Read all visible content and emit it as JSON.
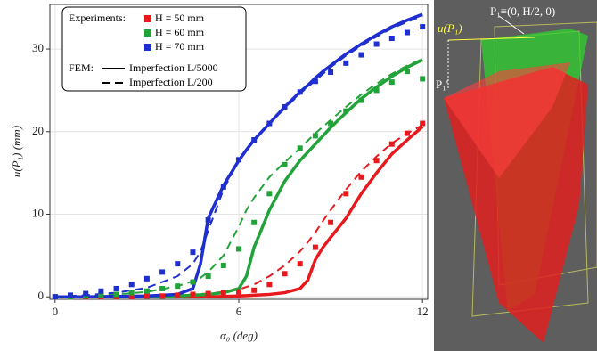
{
  "chart_data": {
    "type": "scatter-line",
    "x_label": "α₀ (deg)",
    "y_label": "u(P₁) (mm)",
    "xlim": [
      -0.17,
      12.17
    ],
    "ylim": [
      -0.3,
      35.4
    ],
    "xticks": [
      0,
      6,
      12
    ],
    "yticks": [
      0,
      10,
      20,
      30
    ],
    "grid": true,
    "experiments_label": "Experiments:",
    "fem_label": "FEM:",
    "experiments_x": [
      0,
      0.5,
      1,
      1.5,
      2,
      2.5,
      3,
      3.5,
      4,
      4.5,
      5,
      5.5,
      6,
      6.5,
      7,
      7.5,
      8,
      8.5,
      9,
      9.5,
      10,
      10.5,
      11,
      11.5,
      12
    ],
    "experiments": [
      {
        "name": "H = 50 mm",
        "color": "#e8191c",
        "values": [
          0,
          0,
          0,
          0,
          0,
          0,
          0.1,
          0.1,
          0.2,
          0.3,
          0.4,
          0.5,
          0.6,
          0.8,
          1.5,
          2.8,
          4,
          6,
          9,
          12.5,
          14.5,
          16.5,
          18.5,
          19.8,
          21
        ]
      },
      {
        "name": "H = 60 mm",
        "color": "#22a33a",
        "values": [
          0,
          0,
          0.1,
          0.2,
          0.3,
          0.5,
          0.7,
          1,
          1.3,
          1.8,
          2.5,
          3.8,
          5.8,
          9,
          12.5,
          16,
          18,
          19.5,
          21,
          22.5,
          23.8,
          25,
          26,
          27.3,
          26.4
        ]
      },
      {
        "name": "H = 70 mm",
        "color": "#1f2fcf",
        "values": [
          0,
          0.2,
          0.4,
          0.7,
          1,
          1.5,
          2.2,
          3,
          4,
          5.4,
          9.3,
          13.3,
          16.6,
          19,
          21,
          23,
          24.8,
          26.1,
          27.2,
          28.3,
          29.3,
          30.6,
          31.3,
          32,
          32.7
        ]
      }
    ],
    "fem_styles": [
      {
        "name": "Imperfection L/5000",
        "dash": "solid"
      },
      {
        "name": "Imperfection L/200",
        "dash": "dashed"
      }
    ],
    "fem_x": [
      0,
      1,
      2,
      3,
      4,
      4.5,
      4.75,
      5,
      5.5,
      6,
      6.25,
      6.5,
      7,
      7.5,
      8,
      8.25,
      8.5,
      8.75,
      9,
      9.5,
      10,
      10.5,
      11,
      11.5,
      12
    ],
    "fem": [
      {
        "color": "#e8191c",
        "dash": "solid",
        "values": [
          0,
          0,
          0,
          0,
          0,
          0,
          0,
          0,
          0.05,
          0.1,
          0.15,
          0.2,
          0.3,
          0.5,
          1,
          2,
          4.5,
          6,
          7.2,
          9.5,
          12.5,
          15,
          17.3,
          19,
          20.6
        ]
      },
      {
        "color": "#e8191c",
        "dash": "dashed",
        "values": [
          0,
          0,
          0.05,
          0.1,
          0.2,
          0.3,
          0.35,
          0.4,
          0.6,
          0.9,
          1.2,
          1.5,
          2.5,
          3.8,
          5.5,
          6.6,
          7.8,
          9.2,
          10.5,
          13,
          15.2,
          17,
          18.6,
          19.8,
          20.8
        ]
      },
      {
        "color": "#22a33a",
        "dash": "solid",
        "values": [
          0,
          0,
          0,
          0.05,
          0.1,
          0.2,
          0.25,
          0.3,
          0.5,
          1,
          2.5,
          6,
          10.5,
          14,
          16.5,
          17.5,
          18.5,
          19.5,
          20.5,
          22.3,
          24,
          25.4,
          26.7,
          27.8,
          28.7
        ]
      },
      {
        "color": "#22a33a",
        "dash": "dashed",
        "values": [
          0,
          0.1,
          0.3,
          0.6,
          1.3,
          1.9,
          2.3,
          3,
          5,
          8.5,
          10.5,
          12,
          14.5,
          16.3,
          18,
          18.9,
          19.8,
          20.6,
          21.4,
          23,
          24.5,
          25.8,
          27,
          28,
          28.8
        ]
      },
      {
        "color": "#1f2fcf",
        "dash": "solid",
        "values": [
          0,
          0,
          0.05,
          0.1,
          0.3,
          1,
          4,
          9.5,
          13.5,
          16.5,
          17.8,
          19,
          21,
          23,
          24.8,
          25.6,
          26.5,
          27.3,
          28,
          29.4,
          30.6,
          31.7,
          32.7,
          33.5,
          34.2
        ]
      },
      {
        "color": "#1f2fcf",
        "dash": "dashed",
        "values": [
          0,
          0.2,
          0.5,
          1.1,
          2.5,
          4,
          5.5,
          8,
          13,
          16.5,
          17.8,
          19,
          21,
          22.8,
          24.6,
          25.4,
          26.2,
          27,
          27.8,
          29.2,
          30.4,
          31.5,
          32.5,
          33.3,
          34
        ]
      }
    ]
  },
  "render": {
    "labels": [
      "P₁≡(0, H/2, 0)",
      "u(P₁)",
      "P₁'"
    ]
  }
}
